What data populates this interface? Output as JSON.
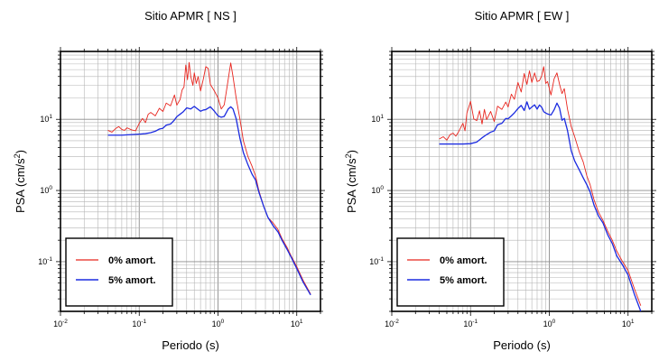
{
  "chart_data": [
    {
      "type": "line",
      "title": "Sitio APMR [ NS ]",
      "xlabel": "Periodo (s)",
      "ylabel": "PSA (cm/s2)",
      "xscale": "log",
      "yscale": "log",
      "xlim": [
        0.01,
        20
      ],
      "ylim": [
        0.02,
        90
      ],
      "grid": true,
      "legend_position": "bottom-left",
      "x_ticks": [
        {
          "base": "10",
          "exp": "-2"
        },
        {
          "base": "10",
          "exp": "-1"
        },
        {
          "base": "10",
          "exp": "0"
        },
        {
          "base": "10",
          "exp": "1"
        }
      ],
      "y_ticks": [
        {
          "base": "10",
          "exp": "-1"
        },
        {
          "base": "10",
          "exp": "0"
        },
        {
          "base": "10",
          "exp": "1"
        }
      ],
      "series": [
        {
          "name": "0% amort.",
          "color": "#e8261f",
          "points": [
            [
              0.04,
              7.0
            ],
            [
              0.045,
              6.6
            ],
            [
              0.05,
              7.4
            ],
            [
              0.055,
              7.9
            ],
            [
              0.06,
              7.2
            ],
            [
              0.065,
              7.0
            ],
            [
              0.07,
              7.6
            ],
            [
              0.08,
              7.1
            ],
            [
              0.09,
              6.9
            ],
            [
              0.1,
              8.8
            ],
            [
              0.11,
              10.3
            ],
            [
              0.12,
              9.0
            ],
            [
              0.13,
              11.8
            ],
            [
              0.14,
              12.5
            ],
            [
              0.16,
              11.2
            ],
            [
              0.18,
              14.3
            ],
            [
              0.2,
              12.9
            ],
            [
              0.22,
              16.9
            ],
            [
              0.25,
              15.5
            ],
            [
              0.28,
              22.0
            ],
            [
              0.3,
              15.8
            ],
            [
              0.33,
              19.0
            ],
            [
              0.35,
              25.8
            ],
            [
              0.37,
              28.5
            ],
            [
              0.39,
              58.0
            ],
            [
              0.41,
              36.0
            ],
            [
              0.43,
              63.0
            ],
            [
              0.45,
              40.5
            ],
            [
              0.48,
              30.0
            ],
            [
              0.5,
              45.0
            ],
            [
              0.53,
              32.0
            ],
            [
              0.56,
              40.0
            ],
            [
              0.6,
              25.0
            ],
            [
              0.65,
              36.5
            ],
            [
              0.7,
              55.0
            ],
            [
              0.75,
              52.0
            ],
            [
              0.8,
              31.0
            ],
            [
              0.9,
              25.0
            ],
            [
              1.0,
              20.0
            ],
            [
              1.1,
              14.0
            ],
            [
              1.2,
              16.0
            ],
            [
              1.3,
              28.0
            ],
            [
              1.45,
              62.0
            ],
            [
              1.55,
              40.0
            ],
            [
              1.7,
              20.0
            ],
            [
              1.9,
              10.0
            ],
            [
              2.1,
              5.0
            ],
            [
              2.4,
              3.0
            ],
            [
              2.7,
              2.2
            ],
            [
              3.0,
              1.6
            ],
            [
              3.3,
              1.0
            ],
            [
              3.8,
              0.6
            ],
            [
              4.3,
              0.42
            ],
            [
              5.0,
              0.35
            ],
            [
              5.8,
              0.28
            ],
            [
              6.5,
              0.21
            ],
            [
              7.5,
              0.16
            ],
            [
              8.5,
              0.12
            ],
            [
              10.0,
              0.085
            ],
            [
              12.0,
              0.055
            ],
            [
              15.0,
              0.035
            ]
          ]
        },
        {
          "name": "5% amort.",
          "color": "#1b2be0",
          "points": [
            [
              0.04,
              6.0
            ],
            [
              0.06,
              6.0
            ],
            [
              0.08,
              6.1
            ],
            [
              0.1,
              6.2
            ],
            [
              0.12,
              6.3
            ],
            [
              0.14,
              6.5
            ],
            [
              0.16,
              6.8
            ],
            [
              0.18,
              7.3
            ],
            [
              0.2,
              7.5
            ],
            [
              0.22,
              8.3
            ],
            [
              0.25,
              8.6
            ],
            [
              0.28,
              9.8
            ],
            [
              0.3,
              10.9
            ],
            [
              0.33,
              11.8
            ],
            [
              0.36,
              12.7
            ],
            [
              0.4,
              14.5
            ],
            [
              0.45,
              14.0
            ],
            [
              0.5,
              15.2
            ],
            [
              0.55,
              14.0
            ],
            [
              0.6,
              13.0
            ],
            [
              0.65,
              13.5
            ],
            [
              0.7,
              13.7
            ],
            [
              0.8,
              15.0
            ],
            [
              0.9,
              13.0
            ],
            [
              1.0,
              11.2
            ],
            [
              1.1,
              10.7
            ],
            [
              1.2,
              11.0
            ],
            [
              1.35,
              14.0
            ],
            [
              1.45,
              15.0
            ],
            [
              1.55,
              14.0
            ],
            [
              1.7,
              10.2
            ],
            [
              1.9,
              5.4
            ],
            [
              2.1,
              3.4
            ],
            [
              2.4,
              2.3
            ],
            [
              2.7,
              1.7
            ],
            [
              3.0,
              1.4
            ],
            [
              3.3,
              0.95
            ],
            [
              3.8,
              0.6
            ],
            [
              4.3,
              0.42
            ],
            [
              5.0,
              0.32
            ],
            [
              5.8,
              0.26
            ],
            [
              6.5,
              0.2
            ],
            [
              7.5,
              0.15
            ],
            [
              8.5,
              0.115
            ],
            [
              10.0,
              0.08
            ],
            [
              12.0,
              0.052
            ],
            [
              15.0,
              0.034
            ]
          ]
        }
      ]
    },
    {
      "type": "line",
      "title": "Sitio APMR [ EW ]",
      "xlabel": "Periodo (s)",
      "ylabel": "PSA (cm/s2)",
      "xscale": "log",
      "yscale": "log",
      "xlim": [
        0.01,
        20
      ],
      "ylim": [
        0.02,
        90
      ],
      "grid": true,
      "legend_position": "bottom-left",
      "x_ticks": [
        {
          "base": "10",
          "exp": "-2"
        },
        {
          "base": "10",
          "exp": "-1"
        },
        {
          "base": "10",
          "exp": "0"
        },
        {
          "base": "10",
          "exp": "1"
        }
      ],
      "y_ticks": [
        {
          "base": "10",
          "exp": "-1"
        },
        {
          "base": "10",
          "exp": "0"
        },
        {
          "base": "10",
          "exp": "1"
        }
      ],
      "series": [
        {
          "name": "0% amort.",
          "color": "#e8261f",
          "points": [
            [
              0.04,
              5.3
            ],
            [
              0.045,
              5.7
            ],
            [
              0.05,
              5.1
            ],
            [
              0.055,
              6.1
            ],
            [
              0.06,
              6.4
            ],
            [
              0.065,
              5.8
            ],
            [
              0.07,
              6.6
            ],
            [
              0.08,
              8.8
            ],
            [
              0.085,
              6.9
            ],
            [
              0.09,
              12.3
            ],
            [
              0.1,
              17.9
            ],
            [
              0.11,
              10.1
            ],
            [
              0.12,
              9.6
            ],
            [
              0.13,
              13.2
            ],
            [
              0.14,
              8.6
            ],
            [
              0.15,
              13.8
            ],
            [
              0.16,
              9.9
            ],
            [
              0.18,
              12.9
            ],
            [
              0.2,
              9.3
            ],
            [
              0.22,
              15.3
            ],
            [
              0.25,
              13.8
            ],
            [
              0.28,
              17.5
            ],
            [
              0.3,
              14.9
            ],
            [
              0.33,
              22.6
            ],
            [
              0.36,
              19.1
            ],
            [
              0.4,
              33.0
            ],
            [
              0.44,
              24.2
            ],
            [
              0.48,
              44.0
            ],
            [
              0.52,
              31.0
            ],
            [
              0.56,
              48.0
            ],
            [
              0.6,
              33.0
            ],
            [
              0.65,
              45.0
            ],
            [
              0.7,
              34.0
            ],
            [
              0.75,
              35.0
            ],
            [
              0.8,
              41.0
            ],
            [
              0.85,
              55.0
            ],
            [
              0.9,
              32.0
            ],
            [
              0.95,
              34.0
            ],
            [
              1.05,
              22.0
            ],
            [
              1.15,
              37.0
            ],
            [
              1.25,
              45.0
            ],
            [
              1.35,
              31.0
            ],
            [
              1.45,
              23.0
            ],
            [
              1.55,
              27.0
            ],
            [
              1.7,
              14.0
            ],
            [
              1.9,
              7.9
            ],
            [
              2.1,
              5.7
            ],
            [
              2.4,
              3.5
            ],
            [
              2.7,
              2.5
            ],
            [
              3.0,
              1.6
            ],
            [
              3.3,
              1.2
            ],
            [
              3.7,
              0.74
            ],
            [
              4.2,
              0.5
            ],
            [
              4.8,
              0.38
            ],
            [
              5.5,
              0.27
            ],
            [
              6.3,
              0.2
            ],
            [
              7.2,
              0.14
            ],
            [
              8.5,
              0.1
            ],
            [
              10.0,
              0.075
            ],
            [
              12.0,
              0.042
            ],
            [
              14.5,
              0.024
            ]
          ]
        },
        {
          "name": "5% amort.",
          "color": "#1b2be0",
          "points": [
            [
              0.04,
              4.5
            ],
            [
              0.06,
              4.5
            ],
            [
              0.08,
              4.5
            ],
            [
              0.1,
              4.55
            ],
            [
              0.12,
              4.8
            ],
            [
              0.14,
              5.5
            ],
            [
              0.16,
              6.1
            ],
            [
              0.18,
              6.6
            ],
            [
              0.2,
              6.9
            ],
            [
              0.22,
              8.4
            ],
            [
              0.25,
              8.8
            ],
            [
              0.28,
              10.3
            ],
            [
              0.3,
              10.2
            ],
            [
              0.33,
              11.2
            ],
            [
              0.36,
              12.3
            ],
            [
              0.4,
              14.2
            ],
            [
              0.44,
              15.7
            ],
            [
              0.48,
              13.3
            ],
            [
              0.52,
              17.6
            ],
            [
              0.56,
              13.9
            ],
            [
              0.6,
              14.9
            ],
            [
              0.65,
              16.0
            ],
            [
              0.7,
              13.9
            ],
            [
              0.75,
              15.9
            ],
            [
              0.8,
              14.8
            ],
            [
              0.85,
              12.8
            ],
            [
              0.9,
              12.3
            ],
            [
              0.95,
              11.9
            ],
            [
              1.05,
              11.5
            ],
            [
              1.15,
              13.6
            ],
            [
              1.25,
              16.9
            ],
            [
              1.35,
              14.3
            ],
            [
              1.45,
              9.7
            ],
            [
              1.55,
              10.3
            ],
            [
              1.7,
              7.0
            ],
            [
              1.9,
              3.6
            ],
            [
              2.1,
              2.6
            ],
            [
              2.4,
              1.95
            ],
            [
              2.7,
              1.5
            ],
            [
              3.0,
              1.2
            ],
            [
              3.3,
              0.95
            ],
            [
              3.7,
              0.62
            ],
            [
              4.2,
              0.44
            ],
            [
              4.8,
              0.35
            ],
            [
              5.5,
              0.24
            ],
            [
              6.3,
              0.18
            ],
            [
              7.2,
              0.12
            ],
            [
              8.5,
              0.09
            ],
            [
              10.0,
              0.065
            ],
            [
              12.0,
              0.035
            ],
            [
              14.5,
              0.02
            ]
          ]
        }
      ]
    }
  ]
}
